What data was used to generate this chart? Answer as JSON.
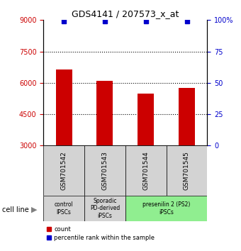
{
  "title": "GDS4141 / 207573_x_at",
  "samples": [
    "GSM701542",
    "GSM701543",
    "GSM701544",
    "GSM701545"
  ],
  "counts": [
    6650,
    6100,
    5500,
    5750
  ],
  "percentile_ranks": [
    99,
    99,
    99,
    99
  ],
  "ylim_left": [
    3000,
    9000
  ],
  "ylim_right": [
    0,
    100
  ],
  "yticks_left": [
    3000,
    4500,
    6000,
    7500,
    9000
  ],
  "yticks_right": [
    0,
    25,
    50,
    75,
    100
  ],
  "bar_color": "#cc0000",
  "dot_color": "#0000cc",
  "grid_color": "#000000",
  "bar_width": 0.4,
  "groups": [
    {
      "label": "control\nIPSCs",
      "color": "#d3d3d3",
      "span": [
        0,
        1
      ]
    },
    {
      "label": "Sporadic\nPD-derived\niPSCs",
      "color": "#d3d3d3",
      "span": [
        1,
        2
      ]
    },
    {
      "label": "presenilin 2 (PS2)\niPSCs",
      "color": "#90ee90",
      "span": [
        2,
        4
      ]
    }
  ],
  "cell_line_label": "cell line",
  "legend_count_label": "count",
  "legend_pct_label": "percentile rank within the sample"
}
